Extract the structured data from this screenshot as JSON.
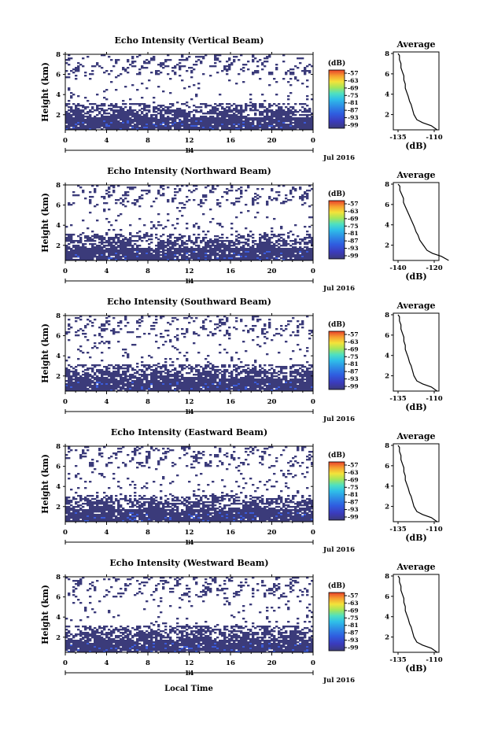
{
  "figure": {
    "xlabel_bottom": "Local Time",
    "date_label": "Jul 2016",
    "day_label": "14"
  },
  "colors": {
    "noise_floor": "#3b3b7a",
    "mid_blue": "#3b5bd9",
    "scale": [
      "#6a2a8f",
      "#3b3bbd",
      "#2f5de0",
      "#2e8ee6",
      "#2fc0e8",
      "#4fe0c0",
      "#a5e65a",
      "#f3e33a",
      "#f7a030",
      "#e8402a"
    ]
  },
  "chart_data": [
    {
      "type": "heatmap",
      "title": "Echo Intensity (Vertical Beam)",
      "ylabel": "Height (km)",
      "xticks": [
        "0",
        "4",
        "8",
        "12",
        "16",
        "20",
        "0"
      ],
      "yticks": [
        "8",
        "6",
        "4",
        "2"
      ],
      "xlim_hours": [
        0,
        24
      ],
      "ylim_km": [
        0.5,
        8
      ],
      "colorbar": {
        "unit": "(dB)",
        "ticks": [
          "-57",
          "-63",
          "-69",
          "-75",
          "-81",
          "-87",
          "-93",
          "-99"
        ]
      },
      "profile": {
        "title": "Average",
        "xlabel": "(dB)",
        "xticks": [
          "-135",
          "-110"
        ],
        "yticks": [
          "8",
          "6",
          "4",
          "2"
        ],
        "x_db": [
          -108,
          -112,
          -118,
          -122,
          -124,
          -125,
          -126,
          -127,
          -128,
          -129,
          -130,
          -130,
          -131,
          -131,
          -132,
          -133,
          -133,
          -134,
          -134,
          -135
        ],
        "y_km": [
          0.5,
          0.9,
          1.2,
          1.5,
          2.0,
          2.5,
          3.0,
          3.3,
          3.8,
          4.2,
          4.6,
          5.0,
          5.4,
          5.8,
          6.2,
          6.6,
          7.0,
          7.4,
          7.8,
          8.0
        ]
      }
    },
    {
      "type": "heatmap",
      "title": "Echo Intensity (Northward Beam)",
      "ylabel": "Height (km)",
      "xticks": [
        "0",
        "4",
        "8",
        "12",
        "16",
        "20",
        "0"
      ],
      "yticks": [
        "8",
        "6",
        "4",
        "2"
      ],
      "xlim_hours": [
        0,
        24
      ],
      "ylim_km": [
        0.5,
        8
      ],
      "colorbar": {
        "unit": "(dB)",
        "ticks": [
          "-57",
          "-63",
          "-69",
          "-75",
          "-81",
          "-87",
          "-93",
          "-99"
        ]
      },
      "profile": {
        "title": "Average",
        "xlabel": "(dB)",
        "xticks": [
          "-140",
          "-120"
        ],
        "yticks": [
          "8",
          "6",
          "4",
          "2"
        ],
        "x_db": [
          -112,
          -116,
          -121,
          -124,
          -126,
          -128,
          -129,
          -130,
          -131,
          -132,
          -133,
          -134,
          -135,
          -136,
          -137,
          -137,
          -138,
          -139,
          -139,
          -140
        ],
        "y_km": [
          0.5,
          0.9,
          1.2,
          1.5,
          2.0,
          2.5,
          3.0,
          3.3,
          3.8,
          4.2,
          4.6,
          5.0,
          5.4,
          5.8,
          6.2,
          6.6,
          7.0,
          7.4,
          7.8,
          8.0
        ]
      }
    },
    {
      "type": "heatmap",
      "title": "Echo Intensity (Southward Beam)",
      "ylabel": "Height (km)",
      "xticks": [
        "0",
        "4",
        "8",
        "12",
        "16",
        "20",
        "0"
      ],
      "yticks": [
        "8",
        "6",
        "4",
        "2"
      ],
      "xlim_hours": [
        0,
        24
      ],
      "ylim_km": [
        0.5,
        8
      ],
      "colorbar": {
        "unit": "(dB)",
        "ticks": [
          "-57",
          "-63",
          "-69",
          "-75",
          "-81",
          "-87",
          "-93",
          "-99"
        ]
      },
      "profile": {
        "title": "Average",
        "xlabel": "(dB)",
        "xticks": [
          "-135",
          "-110"
        ],
        "yticks": [
          "8",
          "6",
          "4",
          "2"
        ],
        "x_db": [
          -108,
          -112,
          -118,
          -122,
          -124,
          -125,
          -126,
          -127,
          -128,
          -129,
          -130,
          -130,
          -131,
          -131,
          -132,
          -133,
          -133,
          -134,
          -134,
          -135
        ],
        "y_km": [
          0.5,
          0.9,
          1.2,
          1.5,
          2.0,
          2.5,
          3.0,
          3.3,
          3.8,
          4.2,
          4.6,
          5.0,
          5.4,
          5.8,
          6.2,
          6.6,
          7.0,
          7.4,
          7.8,
          8.0
        ]
      }
    },
    {
      "type": "heatmap",
      "title": "Echo Intensity (Eastward Beam)",
      "ylabel": "Height (km)",
      "xticks": [
        "0",
        "4",
        "8",
        "12",
        "16",
        "20",
        "0"
      ],
      "yticks": [
        "8",
        "6",
        "4",
        "2"
      ],
      "xlim_hours": [
        0,
        24
      ],
      "ylim_km": [
        0.5,
        8
      ],
      "colorbar": {
        "unit": "(dB)",
        "ticks": [
          "-57",
          "-63",
          "-69",
          "-75",
          "-81",
          "-87",
          "-93",
          "-99"
        ]
      },
      "profile": {
        "title": "Average",
        "xlabel": "(dB)",
        "xticks": [
          "-135",
          "-110"
        ],
        "yticks": [
          "8",
          "6",
          "4",
          "2"
        ],
        "x_db": [
          -108,
          -112,
          -118,
          -122,
          -124,
          -125,
          -126,
          -127,
          -128,
          -129,
          -130,
          -130,
          -131,
          -131,
          -132,
          -133,
          -133,
          -134,
          -134,
          -135
        ],
        "y_km": [
          0.5,
          0.9,
          1.2,
          1.5,
          2.0,
          2.5,
          3.0,
          3.3,
          3.8,
          4.2,
          4.6,
          5.0,
          5.4,
          5.8,
          6.2,
          6.6,
          7.0,
          7.4,
          7.8,
          8.0
        ]
      }
    },
    {
      "type": "heatmap",
      "title": "Echo Intensity (Westward Beam)",
      "ylabel": "Height (km)",
      "xticks": [
        "0",
        "4",
        "8",
        "12",
        "16",
        "20",
        "0"
      ],
      "yticks": [
        "8",
        "6",
        "4",
        "2"
      ],
      "xlim_hours": [
        0,
        24
      ],
      "ylim_km": [
        0.5,
        8
      ],
      "colorbar": {
        "unit": "(dB)",
        "ticks": [
          "-57",
          "-63",
          "-69",
          "-75",
          "-81",
          "-87",
          "-93",
          "-99"
        ]
      },
      "profile": {
        "title": "Average",
        "xlabel": "(dB)",
        "xticks": [
          "-135",
          "-110"
        ],
        "yticks": [
          "8",
          "6",
          "4",
          "2"
        ],
        "x_db": [
          -108,
          -112,
          -118,
          -122,
          -124,
          -125,
          -126,
          -127,
          -128,
          -129,
          -130,
          -130,
          -131,
          -131,
          -132,
          -133,
          -133,
          -134,
          -134,
          -135
        ],
        "y_km": [
          0.5,
          0.9,
          1.2,
          1.5,
          2.0,
          2.5,
          3.0,
          3.3,
          3.8,
          4.2,
          4.6,
          5.0,
          5.4,
          5.8,
          6.2,
          6.6,
          7.0,
          7.4,
          7.8,
          8.0
        ]
      }
    }
  ]
}
